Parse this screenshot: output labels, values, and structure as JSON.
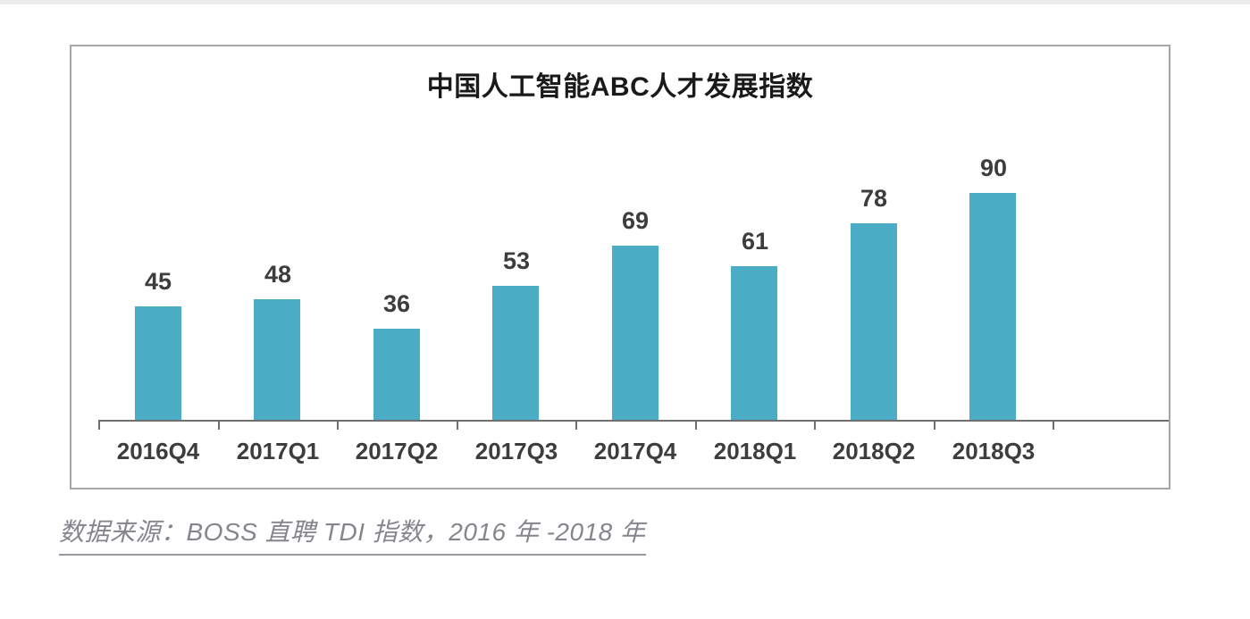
{
  "chart_data": {
    "type": "bar",
    "title": "中国人工智能ABC人才发展指数",
    "categories": [
      "2016Q4",
      "2017Q1",
      "2017Q2",
      "2017Q3",
      "2017Q4",
      "2018Q1",
      "2018Q2",
      "2018Q3"
    ],
    "values": [
      45,
      48,
      36,
      53,
      69,
      61,
      78,
      90
    ],
    "xlabel": "",
    "ylabel": "",
    "ylim": [
      0,
      100
    ],
    "grid": false,
    "legend": false,
    "value_labels_shown": true,
    "bar_color": "#4BACC6",
    "axis_color": "#6e6e6e",
    "frame_border_color": "#a6a6a6",
    "label_color": "#3d3d3d",
    "title_color": "#1a1a1a"
  },
  "source_note": {
    "text": "数据来源：BOSS 直聘 TDI 指数，2016 年 -2018 年",
    "color": "#85858d"
  }
}
